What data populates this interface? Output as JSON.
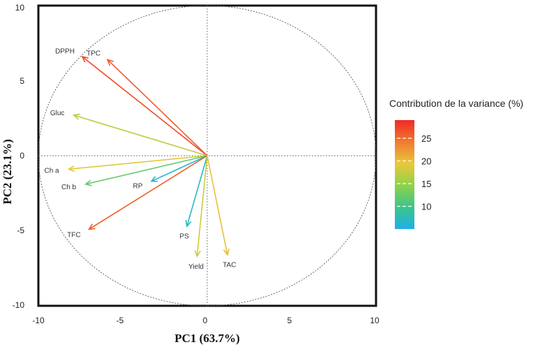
{
  "chart_data": {
    "type": "pca-biplot",
    "xlabel": "PC1 (63.7%)",
    "ylabel": "PC2 (23.1%)",
    "xlim": [
      -10,
      10
    ],
    "ylim": [
      -10,
      10
    ],
    "xticks": [
      "-10",
      "-5",
      "0",
      "5",
      "10"
    ],
    "yticks": [
      "10",
      "5",
      "0",
      "-5",
      "-10"
    ],
    "circle_radius": 10,
    "variables": [
      {
        "name": "DPPH",
        "x": -7.4,
        "y": 6.6,
        "contribution": 27
      },
      {
        "name": "TPC",
        "x": -5.9,
        "y": 6.4,
        "contribution": 26
      },
      {
        "name": "Gluc",
        "x": -7.9,
        "y": 2.7,
        "contribution": 17
      },
      {
        "name": "Ch a",
        "x": -8.2,
        "y": -0.9,
        "contribution": 19
      },
      {
        "name": "Ch b",
        "x": -7.2,
        "y": -1.9,
        "contribution": 12
      },
      {
        "name": "RP",
        "x": -3.3,
        "y": -1.7,
        "contribution": 6
      },
      {
        "name": "TFC",
        "x": -7.0,
        "y": -4.9,
        "contribution": 26
      },
      {
        "name": "PS",
        "x": -1.2,
        "y": -4.7,
        "contribution": 7
      },
      {
        "name": "Yield",
        "x": -0.6,
        "y": -6.7,
        "contribution": 18
      },
      {
        "name": "TAC",
        "x": 1.2,
        "y": -6.6,
        "contribution": 20
      }
    ],
    "legend": {
      "title": "Contribution de la variance (%)",
      "ticks": [
        25,
        20,
        15,
        10
      ],
      "min": 5,
      "max": 29,
      "colors": [
        "#1fb0e8",
        "#3cc48c",
        "#8fd24a",
        "#e8c83a",
        "#f07a30",
        "#f02a24"
      ]
    }
  }
}
